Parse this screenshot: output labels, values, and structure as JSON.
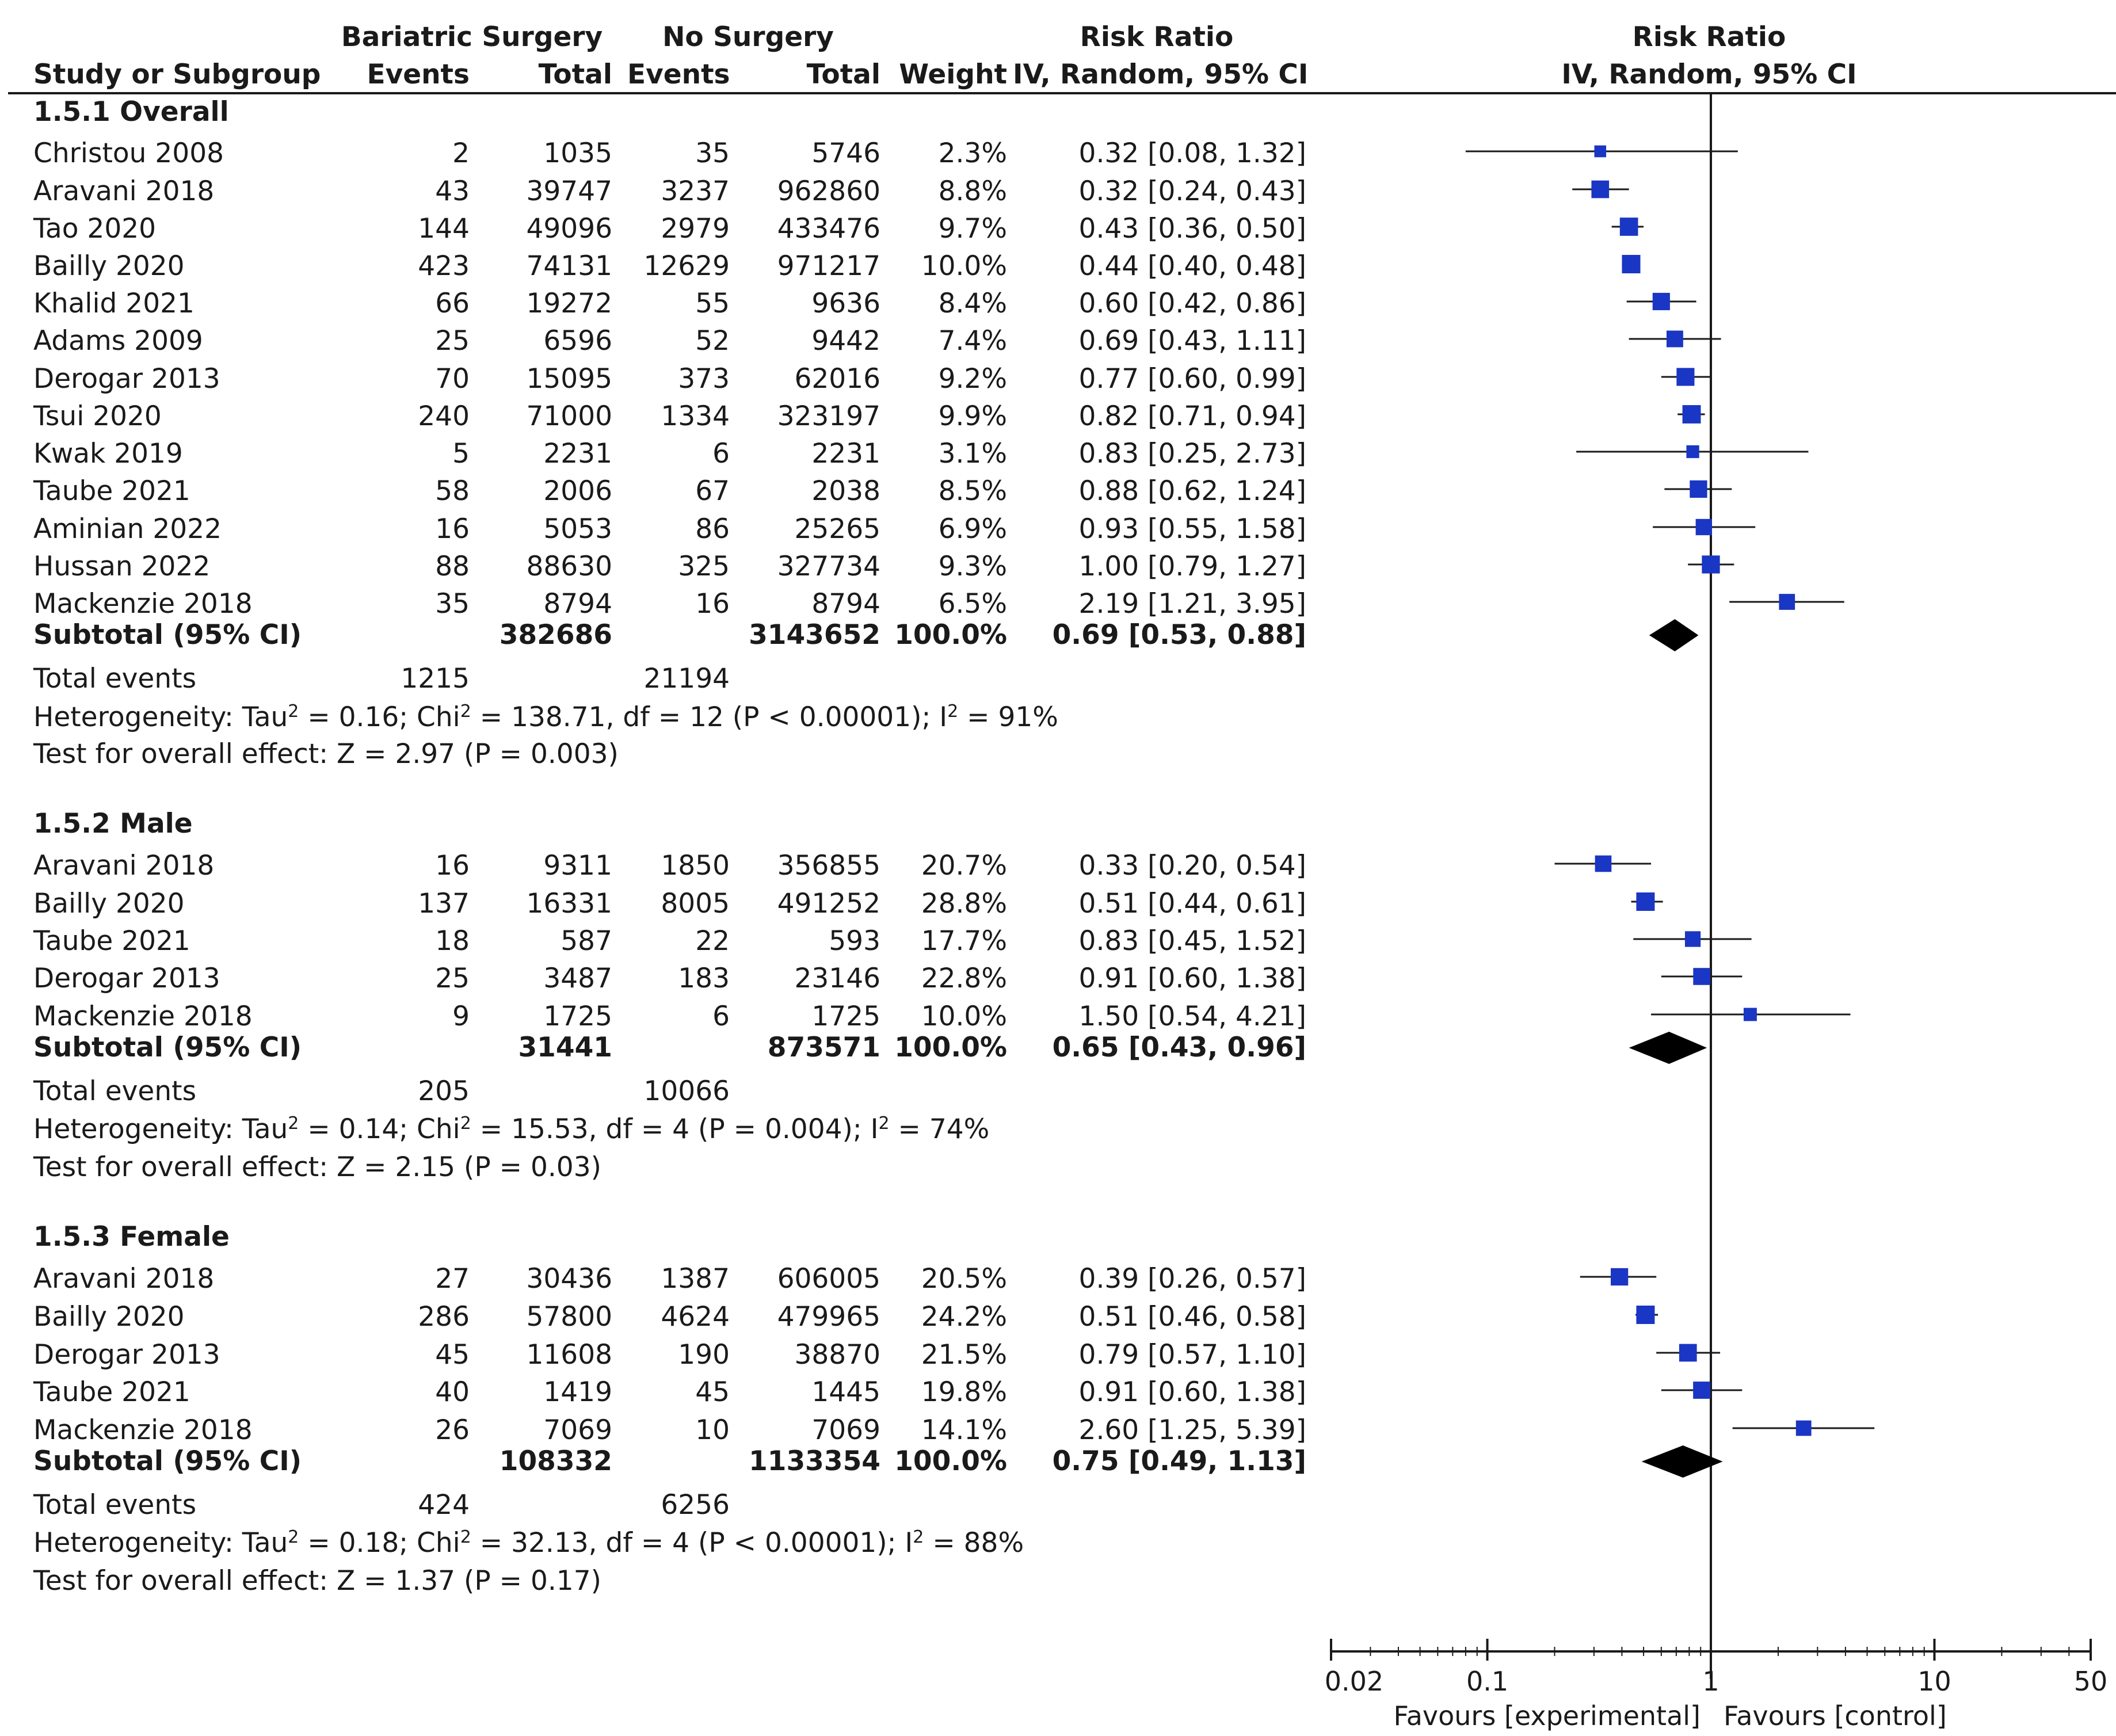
{
  "header": {
    "group1": "Bariatric Surgery",
    "group2": "No Surgery",
    "rr_header": "Risk Ratio",
    "rr_method": "IV, Random, 95% CI",
    "plot_header": "Risk Ratio",
    "plot_method": "IV, Random, 95% CI",
    "study_col": "Study or Subgroup",
    "events1": "Events",
    "total1": "Total",
    "events2": "Events",
    "total2": "Total",
    "weight": "Weight"
  },
  "subgroups": [
    {
      "label": "1.5.1 Overall",
      "studies": [
        {
          "name": "Christou 2008",
          "e1": "2",
          "t1": "1035",
          "e2": "35",
          "t2": "5746",
          "w": "2.3%",
          "ci_text": "0.32 [0.08, 1.32]"
        },
        {
          "name": "Aravani 2018",
          "e1": "43",
          "t1": "39747",
          "e2": "3237",
          "t2": "962860",
          "w": "8.8%",
          "ci_text": "0.32 [0.24, 0.43]"
        },
        {
          "name": "Tao 2020",
          "e1": "144",
          "t1": "49096",
          "e2": "2979",
          "t2": "433476",
          "w": "9.7%",
          "ci_text": "0.43 [0.36, 0.50]"
        },
        {
          "name": "Bailly 2020",
          "e1": "423",
          "t1": "74131",
          "e2": "12629",
          "t2": "971217",
          "w": "10.0%",
          "ci_text": "0.44 [0.40, 0.48]"
        },
        {
          "name": "Khalid 2021",
          "e1": "66",
          "t1": "19272",
          "e2": "55",
          "t2": "9636",
          "w": "8.4%",
          "ci_text": "0.60 [0.42, 0.86]"
        },
        {
          "name": "Adams 2009",
          "e1": "25",
          "t1": "6596",
          "e2": "52",
          "t2": "9442",
          "w": "7.4%",
          "ci_text": "0.69 [0.43, 1.11]"
        },
        {
          "name": "Derogar 2013",
          "e1": "70",
          "t1": "15095",
          "e2": "373",
          "t2": "62016",
          "w": "9.2%",
          "ci_text": "0.77 [0.60, 0.99]"
        },
        {
          "name": "Tsui 2020",
          "e1": "240",
          "t1": "71000",
          "e2": "1334",
          "t2": "323197",
          "w": "9.9%",
          "ci_text": "0.82 [0.71, 0.94]"
        },
        {
          "name": "Kwak 2019",
          "e1": "5",
          "t1": "2231",
          "e2": "6",
          "t2": "2231",
          "w": "3.1%",
          "ci_text": "0.83 [0.25, 2.73]"
        },
        {
          "name": "Taube 2021",
          "e1": "58",
          "t1": "2006",
          "e2": "67",
          "t2": "2038",
          "w": "8.5%",
          "ci_text": "0.88 [0.62, 1.24]"
        },
        {
          "name": "Aminian 2022",
          "e1": "16",
          "t1": "5053",
          "e2": "86",
          "t2": "25265",
          "w": "6.9%",
          "ci_text": "0.93 [0.55, 1.58]"
        },
        {
          "name": "Hussan 2022",
          "e1": "88",
          "t1": "88630",
          "e2": "325",
          "t2": "327734",
          "w": "9.3%",
          "ci_text": "1.00 [0.79, 1.27]"
        },
        {
          "name": "Mackenzie 2018",
          "e1": "35",
          "t1": "8794",
          "e2": "16",
          "t2": "8794",
          "w": "6.5%",
          "ci_text": "2.19 [1.21, 3.95]"
        }
      ],
      "subtotal": {
        "label": "Subtotal (95% CI)",
        "t1": "382686",
        "t2": "3143652",
        "w": "100.0%",
        "ci_text": "0.69 [0.53, 0.88]"
      },
      "total_events_label": "Total events",
      "total_events1": "1215",
      "total_events2": "21194",
      "heterogeneity": {
        "pre": "Heterogeneity: Tau",
        "mid1": " = 0.16; Chi",
        "mid2": " = 138.71, df = 12 (P < 0.00001); I",
        "post": " = 91%"
      },
      "overall": "Test for overall effect: Z = 2.97 (P = 0.003)"
    },
    {
      "label": "1.5.2 Male",
      "studies": [
        {
          "name": "Aravani 2018",
          "e1": "16",
          "t1": "9311",
          "e2": "1850",
          "t2": "356855",
          "w": "20.7%",
          "ci_text": "0.33 [0.20, 0.54]"
        },
        {
          "name": "Bailly 2020",
          "e1": "137",
          "t1": "16331",
          "e2": "8005",
          "t2": "491252",
          "w": "28.8%",
          "ci_text": "0.51 [0.44, 0.61]"
        },
        {
          "name": "Taube 2021",
          "e1": "18",
          "t1": "587",
          "e2": "22",
          "t2": "593",
          "w": "17.7%",
          "ci_text": "0.83 [0.45, 1.52]"
        },
        {
          "name": "Derogar 2013",
          "e1": "25",
          "t1": "3487",
          "e2": "183",
          "t2": "23146",
          "w": "22.8%",
          "ci_text": "0.91 [0.60, 1.38]"
        },
        {
          "name": "Mackenzie 2018",
          "e1": "9",
          "t1": "1725",
          "e2": "6",
          "t2": "1725",
          "w": "10.0%",
          "ci_text": "1.50 [0.54, 4.21]"
        }
      ],
      "subtotal": {
        "label": "Subtotal (95% CI)",
        "t1": "31441",
        "t2": "873571",
        "w": "100.0%",
        "ci_text": "0.65 [0.43, 0.96]"
      },
      "total_events_label": "Total events",
      "total_events1": "205",
      "total_events2": "10066",
      "heterogeneity": {
        "pre": "Heterogeneity: Tau",
        "mid1": " = 0.14; Chi",
        "mid2": " = 15.53, df = 4 (P = 0.004); I",
        "post": " = 74%"
      },
      "overall": "Test for overall effect: Z = 2.15 (P = 0.03)"
    },
    {
      "label": "1.5.3 Female",
      "studies": [
        {
          "name": "Aravani 2018",
          "e1": "27",
          "t1": "30436",
          "e2": "1387",
          "t2": "606005",
          "w": "20.5%",
          "ci_text": "0.39 [0.26, 0.57]"
        },
        {
          "name": "Bailly 2020",
          "e1": "286",
          "t1": "57800",
          "e2": "4624",
          "t2": "479965",
          "w": "24.2%",
          "ci_text": "0.51 [0.46, 0.58]"
        },
        {
          "name": "Derogar 2013",
          "e1": "45",
          "t1": "11608",
          "e2": "190",
          "t2": "38870",
          "w": "21.5%",
          "ci_text": "0.79 [0.57, 1.10]"
        },
        {
          "name": "Taube 2021",
          "e1": "40",
          "t1": "1419",
          "e2": "45",
          "t2": "1445",
          "w": "19.8%",
          "ci_text": "0.91 [0.60, 1.38]"
        },
        {
          "name": "Mackenzie 2018",
          "e1": "26",
          "t1": "7069",
          "e2": "10",
          "t2": "7069",
          "w": "14.1%",
          "ci_text": "2.60 [1.25, 5.39]"
        }
      ],
      "subtotal": {
        "label": "Subtotal (95% CI)",
        "t1": "108332",
        "t2": "1133354",
        "w": "100.0%",
        "ci_text": "0.75 [0.49, 1.13]"
      },
      "total_events_label": "Total events",
      "total_events1": "424",
      "total_events2": "6256",
      "heterogeneity": {
        "pre": "Heterogeneity: Tau",
        "mid1": " = 0.18; Chi",
        "mid2": " = 32.13, df = 4 (P < 0.00001); I",
        "post": " = 88%"
      },
      "overall": "Test for overall effect: Z = 1.37 (P = 0.17)"
    }
  ],
  "sup_2": "2",
  "colors": {
    "marker": "#1a36c4",
    "line": "#1a1a1a"
  },
  "chart_data": {
    "type": "forest",
    "title": "Risk Ratio",
    "subtitle": "IV, Random, 95% CI",
    "x_scale": "log",
    "xlim": [
      0.02,
      50
    ],
    "xticks": [
      0.02,
      0.1,
      1,
      10,
      50
    ],
    "xtick_labels": [
      "0.02",
      "0.1",
      "1",
      "10",
      "50"
    ],
    "xlabel_left": "Favours [experimental]",
    "xlabel_right": "Favours [control]",
    "reference_line": 1,
    "groups": [
      {
        "name": "1.5.1 Overall",
        "studies": [
          {
            "name": "Christou 2008",
            "rr": 0.32,
            "lo": 0.08,
            "hi": 1.32,
            "weight": 2.3
          },
          {
            "name": "Aravani 2018",
            "rr": 0.32,
            "lo": 0.24,
            "hi": 0.43,
            "weight": 8.8
          },
          {
            "name": "Tao 2020",
            "rr": 0.43,
            "lo": 0.36,
            "hi": 0.5,
            "weight": 9.7
          },
          {
            "name": "Bailly 2020",
            "rr": 0.44,
            "lo": 0.4,
            "hi": 0.48,
            "weight": 10.0
          },
          {
            "name": "Khalid 2021",
            "rr": 0.6,
            "lo": 0.42,
            "hi": 0.86,
            "weight": 8.4
          },
          {
            "name": "Adams 2009",
            "rr": 0.69,
            "lo": 0.43,
            "hi": 1.11,
            "weight": 7.4
          },
          {
            "name": "Derogar 2013",
            "rr": 0.77,
            "lo": 0.6,
            "hi": 0.99,
            "weight": 9.2
          },
          {
            "name": "Tsui 2020",
            "rr": 0.82,
            "lo": 0.71,
            "hi": 0.94,
            "weight": 9.9
          },
          {
            "name": "Kwak 2019",
            "rr": 0.83,
            "lo": 0.25,
            "hi": 2.73,
            "weight": 3.1
          },
          {
            "name": "Taube 2021",
            "rr": 0.88,
            "lo": 0.62,
            "hi": 1.24,
            "weight": 8.5
          },
          {
            "name": "Aminian 2022",
            "rr": 0.93,
            "lo": 0.55,
            "hi": 1.58,
            "weight": 6.9
          },
          {
            "name": "Hussan 2022",
            "rr": 1.0,
            "lo": 0.79,
            "hi": 1.27,
            "weight": 9.3
          },
          {
            "name": "Mackenzie 2018",
            "rr": 2.19,
            "lo": 1.21,
            "hi": 3.95,
            "weight": 6.5
          }
        ],
        "subtotal": {
          "rr": 0.69,
          "lo": 0.53,
          "hi": 0.88
        }
      },
      {
        "name": "1.5.2 Male",
        "studies": [
          {
            "name": "Aravani 2018",
            "rr": 0.33,
            "lo": 0.2,
            "hi": 0.54,
            "weight": 20.7
          },
          {
            "name": "Bailly 2020",
            "rr": 0.51,
            "lo": 0.44,
            "hi": 0.61,
            "weight": 28.8
          },
          {
            "name": "Taube 2021",
            "rr": 0.83,
            "lo": 0.45,
            "hi": 1.52,
            "weight": 17.7
          },
          {
            "name": "Derogar 2013",
            "rr": 0.91,
            "lo": 0.6,
            "hi": 1.38,
            "weight": 22.8
          },
          {
            "name": "Mackenzie 2018",
            "rr": 1.5,
            "lo": 0.54,
            "hi": 4.21,
            "weight": 10.0
          }
        ],
        "subtotal": {
          "rr": 0.65,
          "lo": 0.43,
          "hi": 0.96
        }
      },
      {
        "name": "1.5.3 Female",
        "studies": [
          {
            "name": "Aravani 2018",
            "rr": 0.39,
            "lo": 0.26,
            "hi": 0.57,
            "weight": 20.5
          },
          {
            "name": "Bailly 2020",
            "rr": 0.51,
            "lo": 0.46,
            "hi": 0.58,
            "weight": 24.2
          },
          {
            "name": "Derogar 2013",
            "rr": 0.79,
            "lo": 0.57,
            "hi": 1.1,
            "weight": 21.5
          },
          {
            "name": "Taube 2021",
            "rr": 0.91,
            "lo": 0.6,
            "hi": 1.38,
            "weight": 19.8
          },
          {
            "name": "Mackenzie 2018",
            "rr": 2.6,
            "lo": 1.25,
            "hi": 5.39,
            "weight": 14.1
          }
        ],
        "subtotal": {
          "rr": 0.75,
          "lo": 0.49,
          "hi": 1.13
        }
      }
    ]
  }
}
